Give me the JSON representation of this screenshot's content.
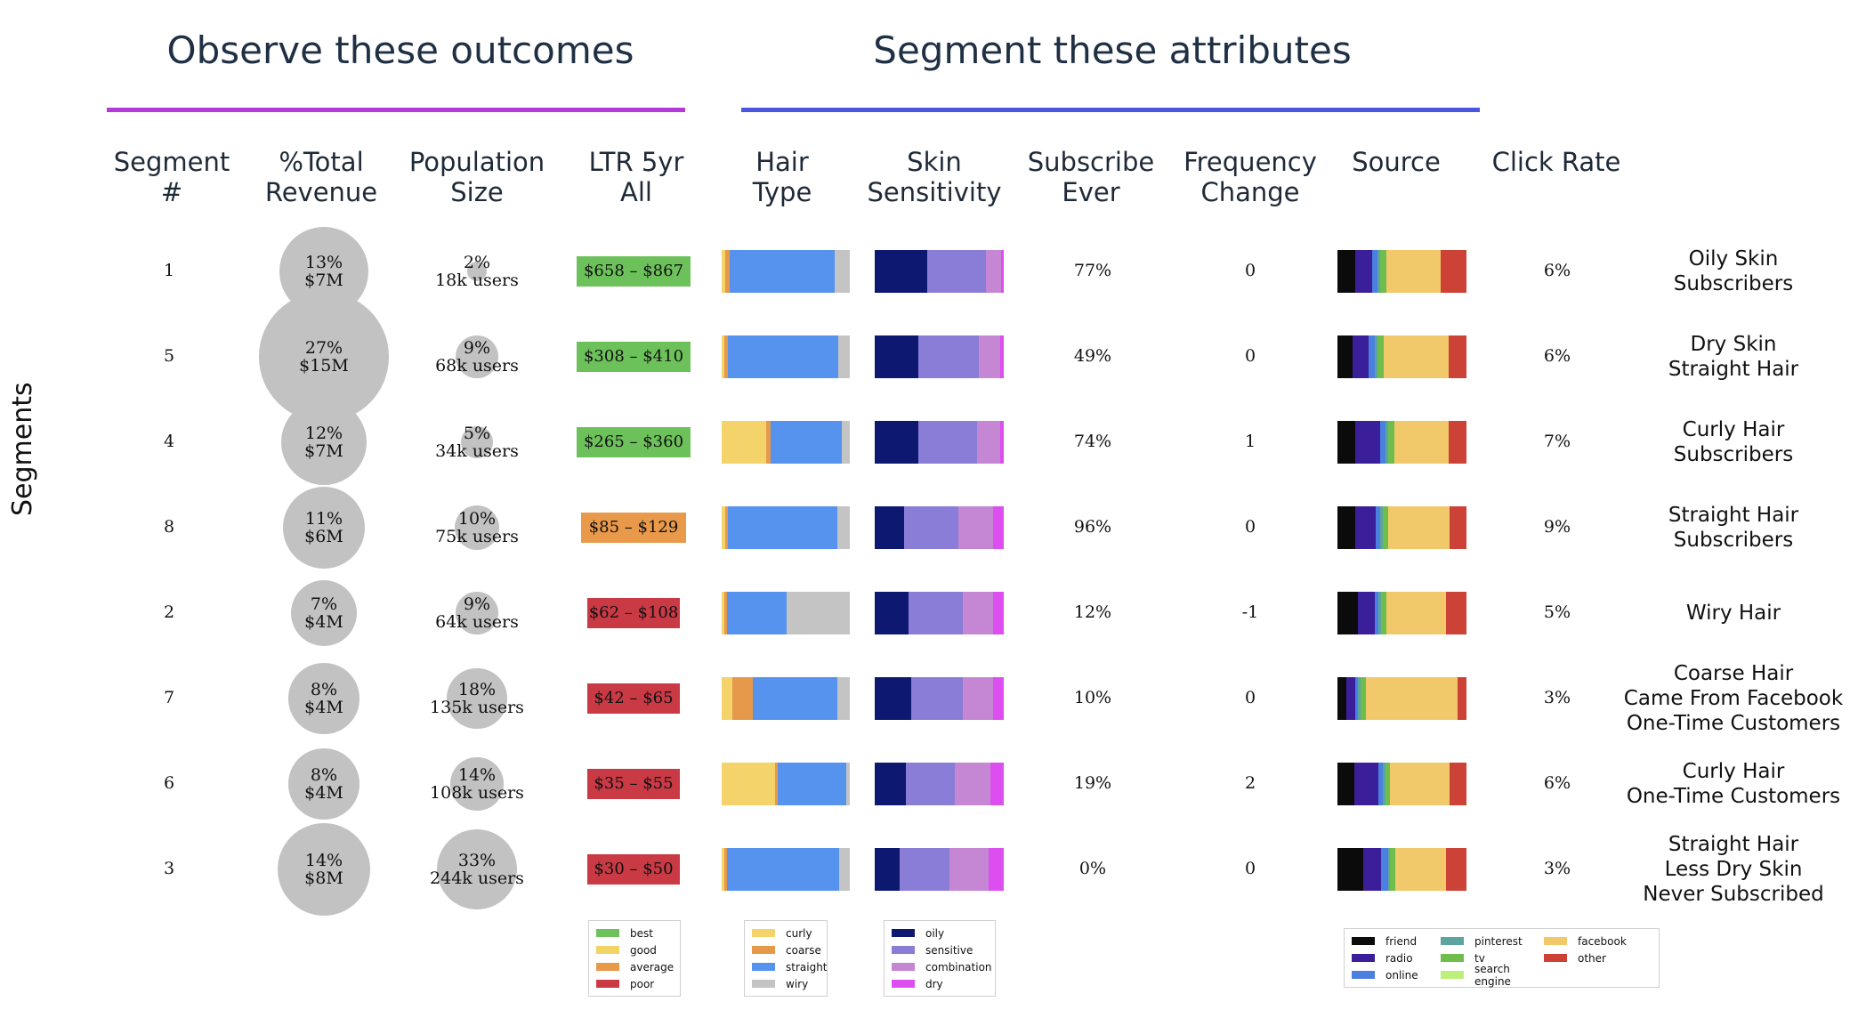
{
  "header": {
    "outcomes_title": "Observe these outcomes",
    "attributes_title": "Segment these attributes",
    "outcomes_color": "#b23ad8",
    "attributes_color": "#4a55e0"
  },
  "columns": [
    "Segment\n#",
    "%Total\nRevenue",
    "Population\nSize",
    "LTR 5yr\nAll",
    "Hair\nType",
    "Skin\nSensitivity",
    "Subscribe\nEver",
    "Frequency\nChange",
    "Source",
    "Click Rate"
  ],
  "y_axis_label": "Segments",
  "colors": {
    "ltr": {
      "best": "#6dc15a",
      "good": "#f0d466",
      "average": "#e8994a",
      "poor": "#c93a45"
    },
    "hair": {
      "curly": "#f3d36a",
      "coarse": "#e6994a",
      "straight": "#5693ef",
      "wiry": "#c4c4c4"
    },
    "skin": {
      "oily": "#0d1870",
      "sensitive": "#8a7dd8",
      "combination": "#c587d3",
      "dry": "#dd4ef0"
    },
    "source": {
      "friend": "#0b0b0b",
      "radio": "#3b1f9a",
      "online": "#4b7fe0",
      "pinterest": "#5ca49e",
      "tv": "#6fbd4d",
      "search engine": "#bdf07a",
      "facebook": "#f2c96a",
      "other": "#cc4237"
    }
  },
  "chart_data": {
    "type": "table",
    "segments": [
      {
        "id": "1",
        "revenue_pct": "13%",
        "revenue": "$7M",
        "revenue_value": 13,
        "pop_pct": "2%",
        "pop": "18k users",
        "pop_value": 2,
        "ltr": "$658 – $867",
        "ltr_class": "best",
        "hair": {
          "curly": 3,
          "coarse": 3,
          "straight": 82,
          "wiry": 12
        },
        "skin": {
          "oily": 41,
          "sensitive": 45,
          "combination": 12,
          "dry": 2
        },
        "subscribe_ever": "77%",
        "frequency_change": "0",
        "source": {
          "friend": 14,
          "radio": 13,
          "online": 4,
          "pinterest": 2,
          "tv": 5,
          "search engine": 0,
          "facebook": 42,
          "other": 20
        },
        "click_rate": "6%",
        "description": "Oily Skin\nSubscribers"
      },
      {
        "id": "5",
        "revenue_pct": "27%",
        "revenue": "$15M",
        "revenue_value": 27,
        "pop_pct": "9%",
        "pop": "68k users",
        "pop_value": 9,
        "ltr": "$308 – $410",
        "ltr_class": "best",
        "hair": {
          "curly": 2,
          "coarse": 3,
          "straight": 86,
          "wiry": 9
        },
        "skin": {
          "oily": 34,
          "sensitive": 47,
          "combination": 16,
          "dry": 3
        },
        "subscribe_ever": "49%",
        "frequency_change": "0",
        "source": {
          "friend": 12,
          "radio": 12,
          "online": 5,
          "pinterest": 2,
          "tv": 5,
          "search engine": 0,
          "facebook": 50,
          "other": 14
        },
        "click_rate": "6%",
        "description": "Dry Skin\nStraight Hair"
      },
      {
        "id": "4",
        "revenue_pct": "12%",
        "revenue": "$7M",
        "revenue_value": 12,
        "pop_pct": "5%",
        "pop": "34k users",
        "pop_value": 5,
        "ltr": "$265 – $360",
        "ltr_class": "best",
        "hair": {
          "curly": 35,
          "coarse": 3,
          "straight": 56,
          "wiry": 6
        },
        "skin": {
          "oily": 34,
          "sensitive": 45,
          "combination": 18,
          "dry": 3
        },
        "subscribe_ever": "74%",
        "frequency_change": "1",
        "source": {
          "friend": 14,
          "radio": 19,
          "online": 4,
          "pinterest": 2,
          "tv": 5,
          "search engine": 0,
          "facebook": 42,
          "other": 14
        },
        "click_rate": "7%",
        "description": "Curly Hair\nSubscribers"
      },
      {
        "id": "8",
        "revenue_pct": "11%",
        "revenue": "$6M",
        "revenue_value": 11,
        "pop_pct": "10%",
        "pop": "75k users",
        "pop_value": 10,
        "ltr": "$85 – $129",
        "ltr_class": "average",
        "hair": {
          "curly": 3,
          "coarse": 2,
          "straight": 85,
          "wiry": 10
        },
        "skin": {
          "oily": 23,
          "sensitive": 42,
          "combination": 27,
          "dry": 8
        },
        "subscribe_ever": "96%",
        "frequency_change": "0",
        "source": {
          "friend": 14,
          "radio": 16,
          "online": 3,
          "pinterest": 2,
          "tv": 4,
          "search engine": 0,
          "facebook": 48,
          "other": 13
        },
        "click_rate": "9%",
        "description": "Straight Hair\nSubscribers"
      },
      {
        "id": "2",
        "revenue_pct": "7%",
        "revenue": "$4M",
        "revenue_value": 7,
        "pop_pct": "9%",
        "pop": "64k users",
        "pop_value": 9,
        "ltr": "$62 – $108",
        "ltr_class": "poor",
        "hair": {
          "curly": 2,
          "coarse": 2,
          "straight": 47,
          "wiry": 49
        },
        "skin": {
          "oily": 26,
          "sensitive": 42,
          "combination": 24,
          "dry": 8
        },
        "subscribe_ever": "12%",
        "frequency_change": "-1",
        "source": {
          "friend": 16,
          "radio": 13,
          "online": 3,
          "pinterest": 2,
          "tv": 4,
          "search engine": 0,
          "facebook": 46,
          "other": 16
        },
        "click_rate": "5%",
        "description": "Wiry Hair"
      },
      {
        "id": "7",
        "revenue_pct": "8%",
        "revenue": "$4M",
        "revenue_value": 8,
        "pop_pct": "18%",
        "pop": "135k users",
        "pop_value": 18,
        "ltr": "$42 – $65",
        "ltr_class": "poor",
        "hair": {
          "curly": 8,
          "coarse": 16,
          "straight": 66,
          "wiry": 10
        },
        "skin": {
          "oily": 28,
          "sensitive": 40,
          "combination": 24,
          "dry": 8
        },
        "subscribe_ever": "10%",
        "frequency_change": "0",
        "source": {
          "friend": 7,
          "radio": 7,
          "online": 2,
          "pinterest": 2,
          "tv": 4,
          "search engine": 0,
          "facebook": 71,
          "other": 7
        },
        "click_rate": "3%",
        "description": "Coarse Hair\nCame From Facebook\nOne-Time Customers"
      },
      {
        "id": "6",
        "revenue_pct": "8%",
        "revenue": "$4M",
        "revenue_value": 8,
        "pop_pct": "14%",
        "pop": "108k users",
        "pop_value": 14,
        "ltr": "$35 – $55",
        "ltr_class": "poor",
        "hair": {
          "curly": 42,
          "coarse": 2,
          "straight": 53,
          "wiry": 3
        },
        "skin": {
          "oily": 24,
          "sensitive": 38,
          "combination": 28,
          "dry": 10
        },
        "subscribe_ever": "19%",
        "frequency_change": "2",
        "source": {
          "friend": 13,
          "radio": 19,
          "online": 3,
          "pinterest": 2,
          "tv": 4,
          "search engine": 0,
          "facebook": 46,
          "other": 13
        },
        "click_rate": "6%",
        "description": "Curly Hair\nOne-Time Customers"
      },
      {
        "id": "3",
        "revenue_pct": "14%",
        "revenue": "$8M",
        "revenue_value": 14,
        "pop_pct": "33%",
        "pop": "244k users",
        "pop_value": 33,
        "ltr": "$30 – $50",
        "ltr_class": "poor",
        "hair": {
          "curly": 2,
          "coarse": 2,
          "straight": 88,
          "wiry": 8
        },
        "skin": {
          "oily": 19,
          "sensitive": 39,
          "combination": 30,
          "dry": 12
        },
        "subscribe_ever": "0%",
        "frequency_change": "0",
        "source": {
          "friend": 20,
          "radio": 14,
          "online": 5,
          "pinterest": 2,
          "tv": 4,
          "search engine": 0,
          "facebook": 39,
          "other": 16
        },
        "click_rate": "3%",
        "description": "Straight Hair\nLess Dry Skin\nNever Subscribed"
      }
    ],
    "legends": {
      "ltr": [
        "best",
        "good",
        "average",
        "poor"
      ],
      "hair": [
        "curly",
        "coarse",
        "straight",
        "wiry"
      ],
      "skin": [
        "oily",
        "sensitive",
        "combination",
        "dry"
      ],
      "source": [
        "friend",
        "radio",
        "online",
        "pinterest",
        "tv",
        "search engine",
        "facebook",
        "other"
      ]
    }
  }
}
